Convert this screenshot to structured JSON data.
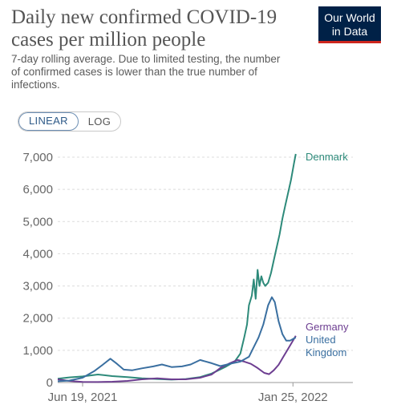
{
  "header": {
    "title": "Daily new confirmed COVID-19 cases per million people",
    "subtitle": "7-day rolling average. Due to limited testing, the number of confirmed cases is lower than the true number of infections.",
    "logo_text": "Our World in Data",
    "logo_color": "#002147",
    "logo_accent": "#ce261e"
  },
  "toggle": {
    "linear_label": "LINEAR",
    "log_label": "LOG",
    "selected": "LINEAR"
  },
  "chart_data": {
    "type": "line",
    "title": "Daily new confirmed COVID-19 cases per million people",
    "subtitle": "7-day rolling average. Due to limited testing, the number of confirmed cases is lower than the true number of infections.",
    "xlabel": "",
    "ylabel": "",
    "x_tick_labels": [
      "Jun 19, 2021",
      "Jan 25, 2022"
    ],
    "x_range": [
      "2021-05-24",
      "2022-02-03"
    ],
    "ylim": [
      0,
      7000
    ],
    "y_tick_labels": [
      "0",
      "1,000",
      "2,000",
      "3,000",
      "4,000",
      "5,000",
      "6,000",
      "7,000"
    ],
    "y_ticks": [
      0,
      1000,
      2000,
      3000,
      4000,
      5000,
      6000,
      7000
    ],
    "grid": "horizontal dashed",
    "legend": "inline labels at line ends (right)",
    "series": [
      {
        "name": "Denmark",
        "color": "#2d8a7a",
        "points": [
          [
            "2021-05-24",
            120
          ],
          [
            "2021-06-05",
            160
          ],
          [
            "2021-06-19",
            190
          ],
          [
            "2021-07-05",
            250
          ],
          [
            "2021-07-20",
            200
          ],
          [
            "2021-08-05",
            170
          ],
          [
            "2021-08-20",
            130
          ],
          [
            "2021-09-05",
            110
          ],
          [
            "2021-09-20",
            90
          ],
          [
            "2021-10-05",
            110
          ],
          [
            "2021-10-20",
            170
          ],
          [
            "2021-11-01",
            280
          ],
          [
            "2021-11-15",
            480
          ],
          [
            "2021-11-25",
            650
          ],
          [
            "2021-12-01",
            900
          ],
          [
            "2021-12-05",
            1400
          ],
          [
            "2021-12-08",
            1800
          ],
          [
            "2021-12-10",
            2400
          ],
          [
            "2021-12-13",
            2700
          ],
          [
            "2021-12-15",
            3200
          ],
          [
            "2021-12-17",
            2600
          ],
          [
            "2021-12-19",
            3500
          ],
          [
            "2021-12-21",
            3000
          ],
          [
            "2021-12-23",
            3300
          ],
          [
            "2021-12-25",
            3100
          ],
          [
            "2021-12-27",
            3000
          ],
          [
            "2021-12-30",
            3100
          ],
          [
            "2022-01-02",
            3400
          ],
          [
            "2022-01-05",
            3800
          ],
          [
            "2022-01-08",
            4200
          ],
          [
            "2022-01-11",
            4600
          ],
          [
            "2022-01-14",
            5100
          ],
          [
            "2022-01-17",
            5500
          ],
          [
            "2022-01-20",
            5900
          ],
          [
            "2022-01-23",
            6300
          ],
          [
            "2022-01-26",
            6800
          ],
          [
            "2022-01-28",
            7100
          ]
        ]
      },
      {
        "name": "Germany",
        "color": "#6d3e91",
        "points": [
          [
            "2021-05-24",
            100
          ],
          [
            "2021-06-05",
            50
          ],
          [
            "2021-06-19",
            20
          ],
          [
            "2021-07-05",
            15
          ],
          [
            "2021-07-20",
            25
          ],
          [
            "2021-08-05",
            50
          ],
          [
            "2021-08-20",
            100
          ],
          [
            "2021-09-05",
            130
          ],
          [
            "2021-09-20",
            100
          ],
          [
            "2021-10-05",
            100
          ],
          [
            "2021-10-20",
            150
          ],
          [
            "2021-11-01",
            250
          ],
          [
            "2021-11-10",
            450
          ],
          [
            "2021-11-20",
            600
          ],
          [
            "2021-11-28",
            700
          ],
          [
            "2021-12-05",
            650
          ],
          [
            "2021-12-12",
            580
          ],
          [
            "2021-12-19",
            450
          ],
          [
            "2021-12-26",
            300
          ],
          [
            "2021-12-31",
            260
          ],
          [
            "2022-01-05",
            380
          ],
          [
            "2022-01-10",
            550
          ],
          [
            "2022-01-15",
            800
          ],
          [
            "2022-01-20",
            1050
          ],
          [
            "2022-01-25",
            1300
          ],
          [
            "2022-01-28",
            1450
          ]
        ]
      },
      {
        "name": "United Kingdom",
        "color": "#3a6fa0",
        "points": [
          [
            "2021-05-24",
            40
          ],
          [
            "2021-06-05",
            60
          ],
          [
            "2021-06-19",
            150
          ],
          [
            "2021-07-01",
            350
          ],
          [
            "2021-07-10",
            550
          ],
          [
            "2021-07-18",
            740
          ],
          [
            "2021-07-25",
            580
          ],
          [
            "2021-08-01",
            400
          ],
          [
            "2021-08-10",
            380
          ],
          [
            "2021-08-20",
            440
          ],
          [
            "2021-09-01",
            500
          ],
          [
            "2021-09-10",
            560
          ],
          [
            "2021-09-20",
            480
          ],
          [
            "2021-10-01",
            500
          ],
          [
            "2021-10-10",
            560
          ],
          [
            "2021-10-20",
            700
          ],
          [
            "2021-11-01",
            600
          ],
          [
            "2021-11-10",
            510
          ],
          [
            "2021-11-20",
            580
          ],
          [
            "2021-12-01",
            650
          ],
          [
            "2021-12-10",
            800
          ],
          [
            "2021-12-15",
            1100
          ],
          [
            "2021-12-20",
            1400
          ],
          [
            "2021-12-25",
            1800
          ],
          [
            "2021-12-30",
            2400
          ],
          [
            "2022-01-03",
            2650
          ],
          [
            "2022-01-06",
            2500
          ],
          [
            "2022-01-10",
            1900
          ],
          [
            "2022-01-14",
            1500
          ],
          [
            "2022-01-18",
            1300
          ],
          [
            "2022-01-22",
            1300
          ],
          [
            "2022-01-25",
            1350
          ],
          [
            "2022-01-28",
            1400
          ]
        ]
      }
    ]
  }
}
